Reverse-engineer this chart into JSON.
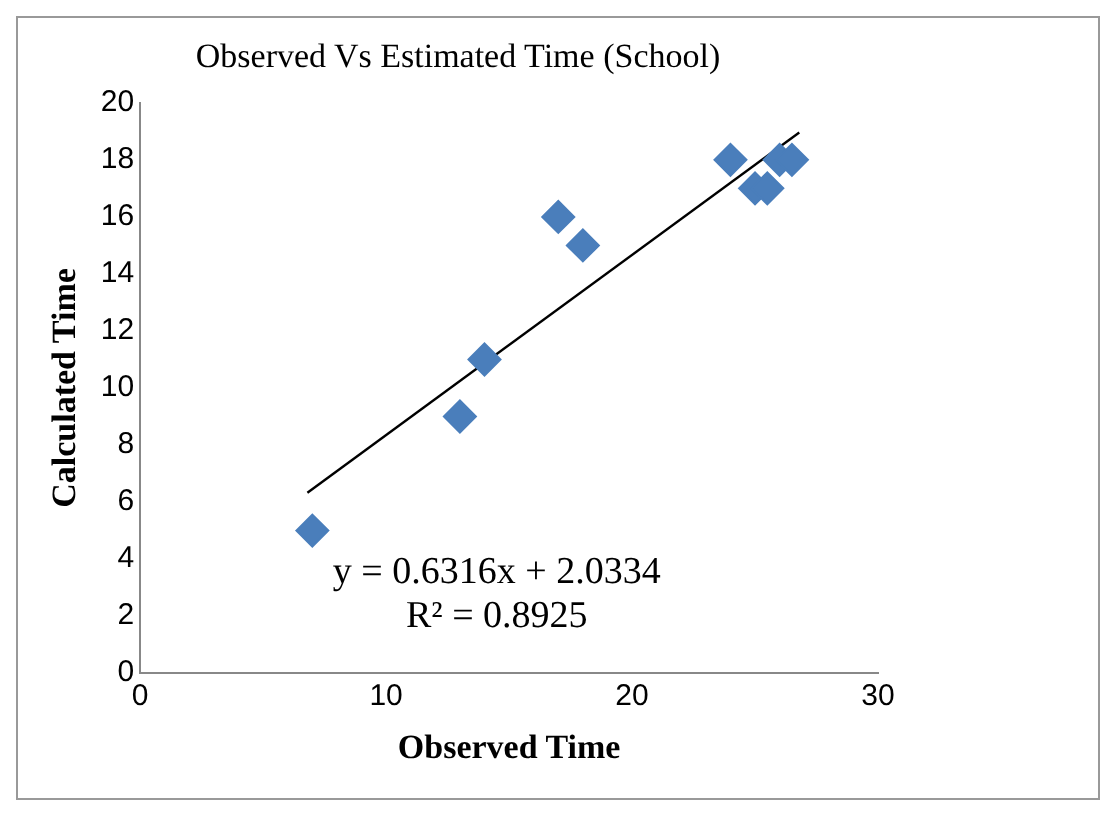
{
  "chart_data": {
    "type": "scatter",
    "title": "Observed Vs Estimated Time (School)",
    "xlabel": "Observed Time",
    "ylabel": "Calculated Time",
    "series": [
      {
        "marker": "diamond",
        "color": "#4a7ebb",
        "x": [
          7,
          13,
          14,
          17,
          18,
          24,
          25,
          25.5,
          26,
          26.5
        ],
        "values": [
          5,
          9,
          11,
          16,
          15,
          18,
          17,
          17,
          18,
          18
        ]
      },
      {
        "type": "line",
        "marker": "none",
        "color": "#000000",
        "x": [
          6.8,
          26.8
        ],
        "values": [
          6.33,
          18.96
        ]
      }
    ],
    "annotations": [
      "y = 0.6316x + 2.0334",
      "R² = 0.8925"
    ],
    "xlim": [
      0,
      30
    ],
    "xticks": [
      0,
      10,
      20,
      30
    ],
    "ylim": [
      0,
      20
    ],
    "yticks": [
      0,
      2,
      4,
      6,
      8,
      10,
      12,
      14,
      16,
      18,
      20
    ],
    "grid": false,
    "legend": false
  }
}
